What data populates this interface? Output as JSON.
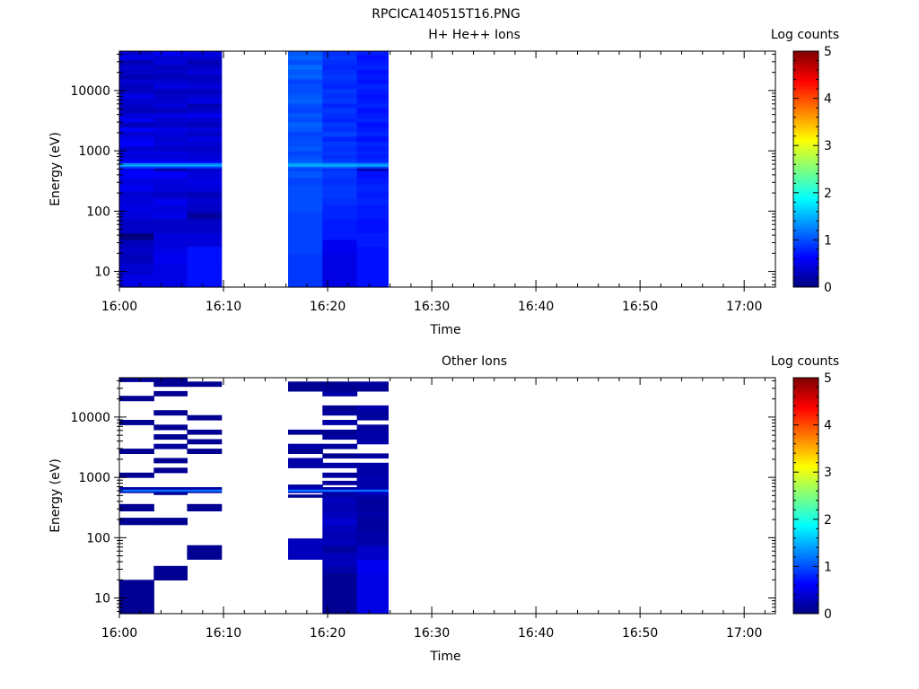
{
  "page_title": "RPCICA140515T16.PNG",
  "colormap": [
    "#00007f",
    "#0000ff",
    "#007fff",
    "#00ffff",
    "#7fff7f",
    "#ffff00",
    "#ff7f00",
    "#ff0000",
    "#7f0000"
  ],
  "chart_data": [
    {
      "type": "heatmap",
      "title": "H+ He++ Ions",
      "xlabel": "Time",
      "ylabel": "Energy (eV)",
      "colorbar_label": "Log counts",
      "colorbar_ticks": [
        "0",
        "1",
        "2",
        "3",
        "4",
        "5"
      ],
      "colorbar_range": [
        0,
        5
      ],
      "x_range_min": [
        0,
        63
      ],
      "x_ticks": [
        "16:00",
        "16:10",
        "16:20",
        "16:30",
        "16:40",
        "16:50",
        "17:00"
      ],
      "y_scale": "log",
      "y_range": [
        5.5,
        45000
      ],
      "y_ticks": [
        "10",
        "100",
        "1000",
        "10000"
      ],
      "time_bins": [
        [
          0,
          3.3
        ],
        [
          3.3,
          6.5
        ],
        [
          6.5,
          9.8
        ],
        [
          16.2,
          19.5
        ],
        [
          19.5,
          22.8
        ],
        [
          22.8,
          25.8
        ]
      ],
      "energy_edges": [
        5.5,
        9,
        14,
        20,
        26,
        34,
        44,
        57,
        75,
        97,
        127,
        165,
        214,
        279,
        362,
        470,
        520,
        560,
        590,
        640,
        690,
        760,
        880,
        1000,
        1200,
        1450,
        1750,
        2100,
        2500,
        3000,
        3600,
        4300,
        5200,
        6200,
        7500,
        9000,
        10800,
        13000,
        15600,
        18700,
        22500,
        27000,
        32400,
        38900,
        45000
      ],
      "values": [
        [
          0.5,
          0.4,
          0.3,
          0.35,
          0.3,
          0.0,
          0.35,
          0.35,
          0.45,
          0.5,
          0.45,
          0.4,
          0.55,
          0.5,
          0.6,
          0.55,
          0.9,
          1.5,
          1.3,
          0.6,
          0.55,
          0.45,
          0.5,
          0.4,
          0.6,
          0.55,
          0.4,
          0.6,
          0.3,
          0.55,
          0.45,
          0.3,
          0.35,
          0.4,
          0.5,
          0.35,
          0.3,
          0.4,
          0.25,
          0.35,
          0.4,
          0.25,
          0.5,
          0.4
        ],
        [
          0.5,
          0.5,
          0.55,
          0.5,
          0.45,
          0.45,
          0.35,
          0.35,
          0.5,
          0.45,
          0.55,
          0.35,
          0.45,
          0.45,
          0.6,
          0.2,
          0.9,
          1.5,
          1.3,
          0.6,
          0.5,
          0.45,
          0.5,
          0.35,
          0.45,
          0.4,
          0.45,
          0.5,
          0.35,
          0.4,
          0.5,
          0.3,
          0.45,
          0.4,
          0.35,
          0.3,
          0.5,
          0.4,
          0.3,
          0.35,
          0.3,
          0.45,
          0.4,
          0.6
        ],
        [
          0.7,
          0.7,
          0.7,
          0.7,
          0.45,
          0.45,
          0.35,
          0.35,
          0.15,
          0.35,
          0.4,
          0.3,
          0.45,
          0.5,
          0.45,
          0.35,
          0.9,
          1.5,
          1.3,
          0.6,
          0.45,
          0.45,
          0.4,
          0.35,
          0.4,
          0.5,
          0.35,
          0.45,
          0.3,
          0.4,
          0.55,
          0.35,
          0.25,
          0.5,
          0.4,
          0.3,
          0.45,
          0.35,
          0.3,
          0.45,
          0.35,
          0.25,
          0.4,
          0.5
        ],
        [
          0.9,
          0.9,
          0.9,
          0.95,
          0.95,
          0.95,
          0.95,
          0.95,
          0.95,
          1.0,
          1.0,
          1.0,
          1.0,
          0.95,
          1.05,
          0.95,
          1.1,
          1.55,
          1.4,
          1.1,
          1.05,
          1.0,
          0.95,
          1.05,
          1.0,
          1.0,
          0.95,
          1.05,
          1.1,
          1.0,
          1.05,
          0.95,
          1.0,
          1.1,
          1.05,
          1.0,
          1.0,
          0.95,
          1.1,
          1.05,
          1.15,
          1.0,
          1.1,
          1.05
        ],
        [
          0.5,
          0.5,
          0.5,
          0.55,
          0.55,
          0.75,
          0.75,
          0.75,
          0.8,
          0.8,
          0.85,
          0.9,
          0.9,
          0.85,
          0.9,
          0.85,
          1.1,
          1.55,
          1.35,
          0.95,
          0.9,
          0.85,
          0.9,
          0.85,
          0.9,
          0.8,
          0.95,
          0.85,
          0.9,
          0.8,
          0.85,
          0.9,
          0.8,
          0.9,
          0.85,
          0.9,
          0.8,
          0.85,
          0.9,
          0.85,
          0.8,
          0.85,
          0.9,
          0.85
        ],
        [
          0.7,
          0.7,
          0.7,
          0.7,
          0.75,
          0.75,
          0.7,
          0.7,
          0.75,
          0.75,
          0.8,
          0.75,
          0.8,
          0.75,
          0.7,
          0.25,
          0.95,
          1.5,
          1.3,
          0.85,
          0.8,
          0.75,
          0.8,
          0.75,
          0.8,
          0.7,
          0.8,
          0.75,
          0.7,
          0.8,
          0.75,
          0.7,
          0.8,
          0.75,
          0.7,
          0.75,
          0.8,
          0.7,
          0.75,
          0.7,
          0.8,
          0.75,
          0.7,
          0.75
        ]
      ]
    },
    {
      "type": "heatmap",
      "title": "Other Ions",
      "xlabel": "Time",
      "ylabel": "Energy (eV)",
      "colorbar_label": "Log counts",
      "colorbar_ticks": [
        "0",
        "1",
        "2",
        "3",
        "4",
        "5"
      ],
      "colorbar_range": [
        0,
        5
      ],
      "x_range_min": [
        0,
        63
      ],
      "x_ticks": [
        "16:00",
        "16:10",
        "16:20",
        "16:30",
        "16:40",
        "16:50",
        "17:00"
      ],
      "y_scale": "log",
      "y_range": [
        5.5,
        45000
      ],
      "y_ticks": [
        "10",
        "100",
        "1000",
        "10000"
      ],
      "time_bins": [
        [
          0,
          3.3
        ],
        [
          3.3,
          6.5
        ],
        [
          6.5,
          9.8
        ],
        [
          16.2,
          19.5
        ],
        [
          19.5,
          22.8
        ],
        [
          22.8,
          25.8
        ]
      ],
      "energy_edges": [
        5.5,
        9,
        14,
        20,
        26,
        34,
        44,
        57,
        75,
        97,
        127,
        165,
        214,
        279,
        362,
        470,
        520,
        560,
        590,
        640,
        690,
        760,
        880,
        1000,
        1200,
        1450,
        1750,
        2100,
        2500,
        3000,
        3600,
        4300,
        5200,
        6200,
        7500,
        9000,
        10800,
        13000,
        15600,
        18700,
        22500,
        27000,
        32400,
        38900,
        45000
      ],
      "values": [
        [
          0.1,
          0.1,
          0.1,
          null,
          null,
          null,
          null,
          null,
          null,
          null,
          null,
          0.1,
          null,
          0.1,
          null,
          null,
          null,
          0.2,
          1.2,
          0.2,
          null,
          null,
          null,
          0.1,
          null,
          null,
          null,
          null,
          0.1,
          null,
          null,
          null,
          null,
          null,
          0.1,
          null,
          null,
          null,
          null,
          0.1,
          null,
          null,
          null,
          0.1
        ],
        [
          null,
          null,
          null,
          0.1,
          0.1,
          null,
          null,
          null,
          null,
          null,
          null,
          0.1,
          null,
          null,
          null,
          null,
          0.1,
          0.2,
          1.2,
          0.2,
          null,
          null,
          null,
          null,
          0.1,
          null,
          0.1,
          null,
          null,
          0.15,
          null,
          0.1,
          null,
          0.1,
          null,
          null,
          0.1,
          null,
          null,
          null,
          0.1,
          null,
          0.1,
          0.1
        ],
        [
          null,
          null,
          null,
          null,
          null,
          null,
          0.1,
          0.1,
          null,
          null,
          null,
          null,
          null,
          0.1,
          null,
          null,
          null,
          0.2,
          1.2,
          0.2,
          null,
          null,
          null,
          null,
          null,
          null,
          null,
          null,
          0.1,
          null,
          0.1,
          null,
          0.1,
          null,
          null,
          0.1,
          null,
          null,
          null,
          null,
          null,
          null,
          0.1,
          null
        ],
        [
          null,
          null,
          null,
          null,
          null,
          null,
          0.3,
          0.3,
          0.3,
          null,
          null,
          null,
          null,
          null,
          null,
          0.1,
          null,
          0.3,
          1.2,
          0.3,
          0.2,
          null,
          null,
          null,
          null,
          0.2,
          0.2,
          null,
          0.1,
          0.2,
          null,
          null,
          0.1,
          null,
          null,
          null,
          null,
          null,
          null,
          null,
          null,
          0.1,
          0.1,
          null
        ],
        [
          0.1,
          0.1,
          0.1,
          0.1,
          0.2,
          0.3,
          0.3,
          0.15,
          0.3,
          0.25,
          0.3,
          0.4,
          0.3,
          0.25,
          0.3,
          0.2,
          0.15,
          0.35,
          1.2,
          0.2,
          null,
          0.15,
          null,
          0.15,
          null,
          0.2,
          null,
          0.1,
          null,
          0.15,
          null,
          0.15,
          0.1,
          null,
          0.2,
          null,
          0.15,
          0.1,
          null,
          null,
          0.2,
          0.1,
          0.1,
          null
        ],
        [
          0.5,
          0.5,
          0.5,
          0.5,
          0.55,
          0.55,
          0.35,
          0.35,
          0.2,
          0.2,
          0.15,
          0.15,
          0.2,
          0.15,
          0.15,
          0.2,
          0.3,
          0.4,
          1.2,
          0.3,
          0.2,
          0.2,
          0.25,
          0.2,
          0.2,
          0.2,
          null,
          0.15,
          null,
          null,
          0.2,
          0.2,
          0.2,
          0.15,
          null,
          0.15,
          0.15,
          0.2,
          null,
          null,
          null,
          0.1,
          0.15,
          null
        ]
      ]
    }
  ]
}
